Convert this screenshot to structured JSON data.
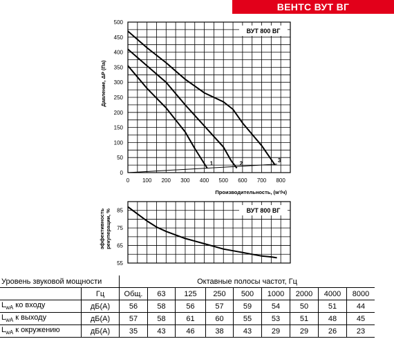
{
  "banner": {
    "title": "ВЕНТС ВУТ ВГ",
    "color": "#e2001a"
  },
  "chart_data": [
    {
      "type": "line",
      "title": "ВУТ 800 ВГ",
      "xlabel": "Производительность, (м³/ч)",
      "ylabel": "Давление, ΔP (Па)",
      "xlim": [
        0,
        850
      ],
      "ylim": [
        0,
        500
      ],
      "xticks": [
        "0",
        "100",
        "200",
        "300",
        "400",
        "500",
        "600",
        "700",
        "800"
      ],
      "yticks": [
        "0",
        "50",
        "100",
        "150",
        "200",
        "250",
        "300",
        "350",
        "400",
        "450",
        "500"
      ],
      "grid": true,
      "series": [
        {
          "name": "1",
          "points": [
            [
              0,
              355
            ],
            [
              100,
              280
            ],
            [
              200,
              215
            ],
            [
              300,
              135
            ],
            [
              350,
              80
            ],
            [
              390,
              40
            ],
            [
              415,
              15
            ]
          ]
        },
        {
          "name": "2",
          "points": [
            [
              0,
              410
            ],
            [
              100,
              355
            ],
            [
              200,
              300
            ],
            [
              300,
              225
            ],
            [
              400,
              155
            ],
            [
              500,
              85
            ],
            [
              540,
              40
            ],
            [
              570,
              15
            ]
          ]
        },
        {
          "name": "3",
          "points": [
            [
              0,
              470
            ],
            [
              100,
              415
            ],
            [
              200,
              365
            ],
            [
              300,
              310
            ],
            [
              400,
              265
            ],
            [
              500,
              235
            ],
            [
              550,
              210
            ],
            [
              600,
              165
            ],
            [
              700,
              90
            ],
            [
              770,
              25
            ]
          ]
        }
      ],
      "system_line": [
        [
          0,
          0
        ],
        [
          780,
          28
        ]
      ]
    },
    {
      "type": "line",
      "title": "ВУТ 800 ВГ",
      "xlabel": "",
      "ylabel": "эффективность рекуперации, %",
      "xlim": [
        0,
        850
      ],
      "ylim": [
        55,
        90
      ],
      "yticks": [
        "55",
        "65",
        "75",
        "85"
      ],
      "grid": true,
      "series": [
        {
          "name": "",
          "points": [
            [
              0,
              87
            ],
            [
              50,
              83
            ],
            [
              100,
              79
            ],
            [
              150,
              75.5
            ],
            [
              200,
              73
            ],
            [
              250,
              71
            ],
            [
              300,
              69
            ],
            [
              350,
              67.5
            ],
            [
              400,
              66
            ],
            [
              450,
              64.5
            ],
            [
              500,
              63
            ],
            [
              550,
              62
            ],
            [
              600,
              61
            ],
            [
              650,
              60
            ],
            [
              700,
              59
            ],
            [
              750,
              58.5
            ],
            [
              780,
              58
            ]
          ]
        }
      ]
    }
  ],
  "table": {
    "title": "Уровень звуковой мощности",
    "bands_title": "Октавные полосы частот, Гц",
    "unit_header": "Гц",
    "columns": [
      "Общ.",
      "63",
      "125",
      "250",
      "500",
      "1000",
      "2000",
      "4000",
      "8000"
    ],
    "rows": [
      {
        "label_main": "L",
        "label_sub": "wA",
        "label_rest": " ко входу",
        "unit": "дБ(А)",
        "values": [
          "56",
          "58",
          "56",
          "57",
          "59",
          "54",
          "50",
          "51",
          "44"
        ]
      },
      {
        "label_main": "L",
        "label_sub": "wA",
        "label_rest": " к выходу",
        "unit": "дБ(А)",
        "values": [
          "57",
          "58",
          "61",
          "60",
          "55",
          "53",
          "51",
          "48",
          "45"
        ]
      },
      {
        "label_main": "L",
        "label_sub": "wA",
        "label_rest": " к окружению",
        "unit": "дБ(А)",
        "values": [
          "35",
          "43",
          "46",
          "38",
          "43",
          "29",
          "29",
          "26",
          "23"
        ]
      }
    ]
  }
}
